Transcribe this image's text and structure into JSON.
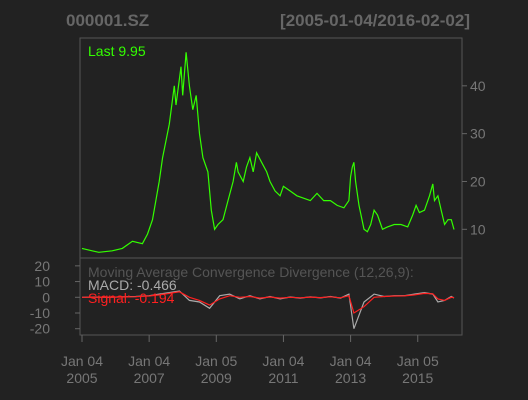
{
  "chart_data": [
    {
      "type": "line",
      "title": "000001.SZ",
      "subtitle": "[2005-01-04/2016-02-02]",
      "x": [
        2005.0,
        2005.3,
        2005.5,
        2005.9,
        2006.2,
        2006.5,
        2006.8,
        2006.95,
        2007.1,
        2007.3,
        2007.4,
        2007.6,
        2007.75,
        2007.8,
        2007.95,
        2008.0,
        2008.1,
        2008.2,
        2008.3,
        2008.4,
        2008.5,
        2008.6,
        2008.75,
        2008.85,
        2008.95,
        2009.05,
        2009.2,
        2009.35,
        2009.5,
        2009.6,
        2009.65,
        2009.8,
        2009.9,
        2010.0,
        2010.1,
        2010.2,
        2010.35,
        2010.5,
        2010.6,
        2010.75,
        2010.9,
        2011.0,
        2011.2,
        2011.4,
        2011.6,
        2011.8,
        2012.0,
        2012.2,
        2012.4,
        2012.6,
        2012.8,
        2012.95,
        2013.0,
        2013.05,
        2013.1,
        2013.15,
        2013.25,
        2013.4,
        2013.5,
        2013.6,
        2013.7,
        2013.8,
        2013.95,
        2014.1,
        2014.3,
        2014.5,
        2014.7,
        2014.85,
        2014.95,
        2015.05,
        2015.2,
        2015.35,
        2015.45,
        2015.5,
        2015.6,
        2015.7,
        2015.8,
        2015.9,
        2016.0,
        2016.08
      ],
      "series": [
        {
          "name": "Last 9.95",
          "color": "#33ff00",
          "values": [
            6,
            5.5,
            5.2,
            5.5,
            6,
            7.5,
            7,
            9,
            12,
            20,
            25,
            32,
            40,
            36,
            44,
            38,
            47,
            40,
            35,
            38,
            30,
            25,
            22,
            14,
            10,
            11,
            12,
            16,
            20,
            24,
            22,
            20,
            23,
            25,
            22,
            26,
            24,
            22,
            20,
            18,
            17,
            19,
            18,
            17,
            16.5,
            16,
            17.5,
            16,
            16,
            15,
            14.5,
            16,
            21,
            23,
            24,
            20,
            15,
            10,
            9.5,
            11,
            14,
            13,
            10,
            10.5,
            11,
            11,
            10.5,
            13,
            15,
            13.5,
            14,
            17,
            19.5,
            16,
            17,
            14,
            11,
            12,
            12,
            9.95
          ]
        }
      ],
      "xlim": [
        2005.0,
        2016.08
      ],
      "ylim": [
        4,
        50
      ],
      "yticks": [
        10,
        20,
        30,
        40
      ]
    },
    {
      "type": "line",
      "title": "Moving Average Convergence Divergence (12,26,9):",
      "x": [
        2005.0,
        2005.4,
        2005.8,
        2006.2,
        2006.6,
        2007.0,
        2007.3,
        2007.6,
        2007.9,
        2008.2,
        2008.5,
        2008.8,
        2009.1,
        2009.4,
        2009.7,
        2010.0,
        2010.3,
        2010.6,
        2010.9,
        2011.2,
        2011.5,
        2011.8,
        2012.1,
        2012.4,
        2012.7,
        2012.95,
        2013.1,
        2013.4,
        2013.7,
        2014.0,
        2014.3,
        2014.6,
        2014.9,
        2015.2,
        2015.45,
        2015.6,
        2015.8,
        2016.0,
        2016.08
      ],
      "series": [
        {
          "name": "MACD: -0.466",
          "color": "#aaaaaa",
          "values": [
            0,
            0.2,
            0,
            0.3,
            0.5,
            1,
            2,
            3,
            4,
            -2,
            -3,
            -7,
            1,
            2,
            -1,
            1,
            -1,
            0.5,
            -1,
            0.2,
            -0.5,
            0.3,
            -0.4,
            0.5,
            -0.5,
            2,
            -20,
            -3,
            2,
            0.5,
            1,
            1,
            2,
            3,
            2,
            -3,
            -2,
            0.5,
            -0.466
          ]
        },
        {
          "name": "Signal: -0.194",
          "color": "#ff2020",
          "values": [
            0,
            0.1,
            0.1,
            0.2,
            0.4,
            0.8,
            1.5,
            2.5,
            3.5,
            0,
            -2,
            -5,
            -1,
            1,
            0,
            0.5,
            -0.5,
            0.2,
            -0.5,
            0,
            -0.3,
            0.1,
            -0.2,
            0.3,
            -0.3,
            1,
            -10,
            -6,
            0,
            0.5,
            0.8,
            0.9,
            1.5,
            2.5,
            2.2,
            -1,
            -2,
            0,
            -0.194
          ]
        }
      ],
      "xlim": [
        2005.0,
        2016.08
      ],
      "ylim": [
        -24,
        25
      ],
      "yticks": [
        20,
        10,
        0,
        -10,
        -20
      ],
      "xticks": [
        {
          "value": 2005.0,
          "label": "Jan 04\n2005"
        },
        {
          "value": 2007.0,
          "label": "Jan 04\n2007"
        },
        {
          "value": 2009.0,
          "label": "Jan 05\n2009"
        },
        {
          "value": 2011.0,
          "label": "Jan 04\n2011"
        },
        {
          "value": 2013.0,
          "label": "Jan 04\n2013"
        },
        {
          "value": 2015.0,
          "label": "Jan 05\n2015"
        }
      ]
    }
  ]
}
